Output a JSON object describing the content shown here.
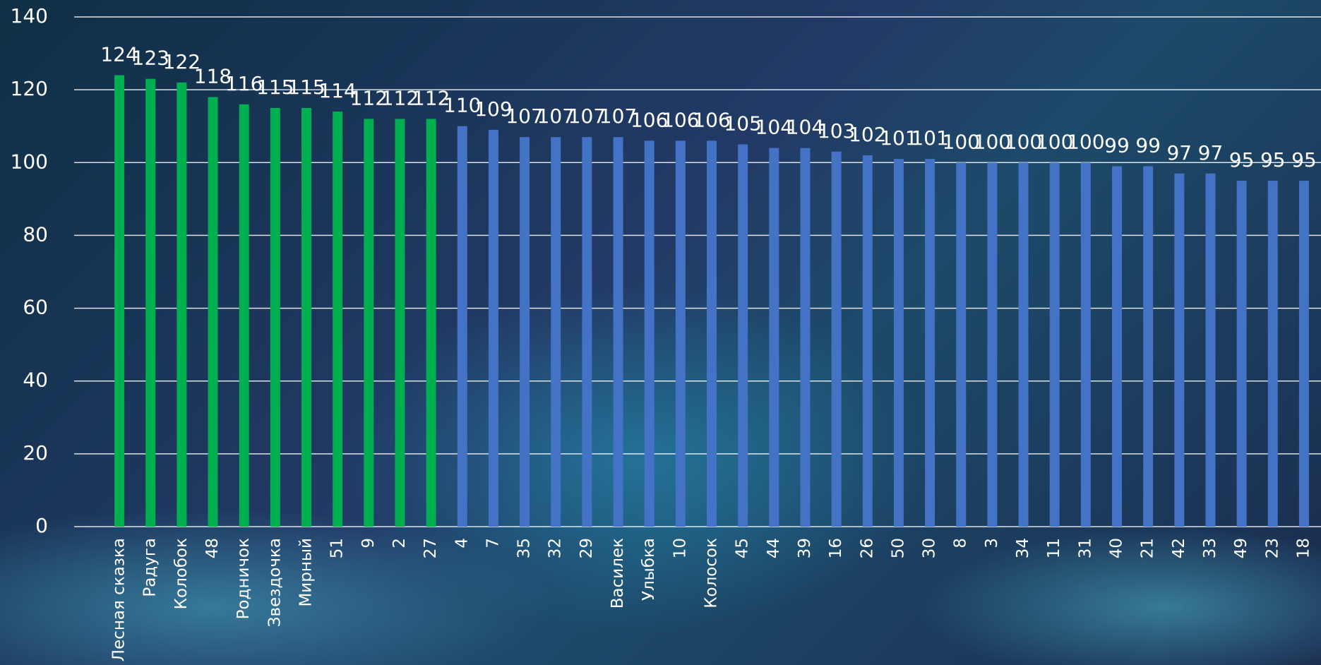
{
  "chart_data": {
    "type": "bar",
    "categories": [
      "Лесная сказка",
      "Радуга",
      "Колобок",
      "48",
      "Родничок",
      "Звездочка",
      "Мирный",
      "51",
      "9",
      "2",
      "27",
      "4",
      "7",
      "35",
      "32",
      "29",
      "Василек",
      "Улыбка",
      "10",
      "Колосок",
      "45",
      "44",
      "39",
      "16",
      "26",
      "50",
      "30",
      "8",
      "3",
      "34",
      "11",
      "31",
      "40",
      "21",
      "42",
      "33",
      "49",
      "23",
      "18"
    ],
    "values": [
      124,
      123,
      122,
      118,
      116,
      115,
      115,
      114,
      112,
      112,
      112,
      110,
      109,
      107,
      107,
      107,
      107,
      106,
      106,
      106,
      105,
      104,
      104,
      103,
      102,
      101,
      101,
      100,
      100,
      100,
      100,
      100,
      99,
      99,
      97,
      97,
      95,
      95,
      95
    ],
    "colors": [
      "#00b050",
      "#00b050",
      "#00b050",
      "#00b050",
      "#00b050",
      "#00b050",
      "#00b050",
      "#00b050",
      "#00b050",
      "#00b050",
      "#00b050",
      "#4472c4",
      "#4472c4",
      "#4472c4",
      "#4472c4",
      "#4472c4",
      "#4472c4",
      "#4472c4",
      "#4472c4",
      "#4472c4",
      "#4472c4",
      "#4472c4",
      "#4472c4",
      "#4472c4",
      "#4472c4",
      "#4472c4",
      "#4472c4",
      "#4472c4",
      "#4472c4",
      "#4472c4",
      "#4472c4",
      "#4472c4",
      "#4472c4",
      "#4472c4",
      "#4472c4",
      "#4472c4",
      "#4472c4",
      "#4472c4",
      "#4472c4"
    ],
    "ylim": [
      0,
      140
    ],
    "yticks": [
      0,
      20,
      40,
      60,
      80,
      100,
      120,
      140
    ],
    "grid": true,
    "data_labels": true
  }
}
